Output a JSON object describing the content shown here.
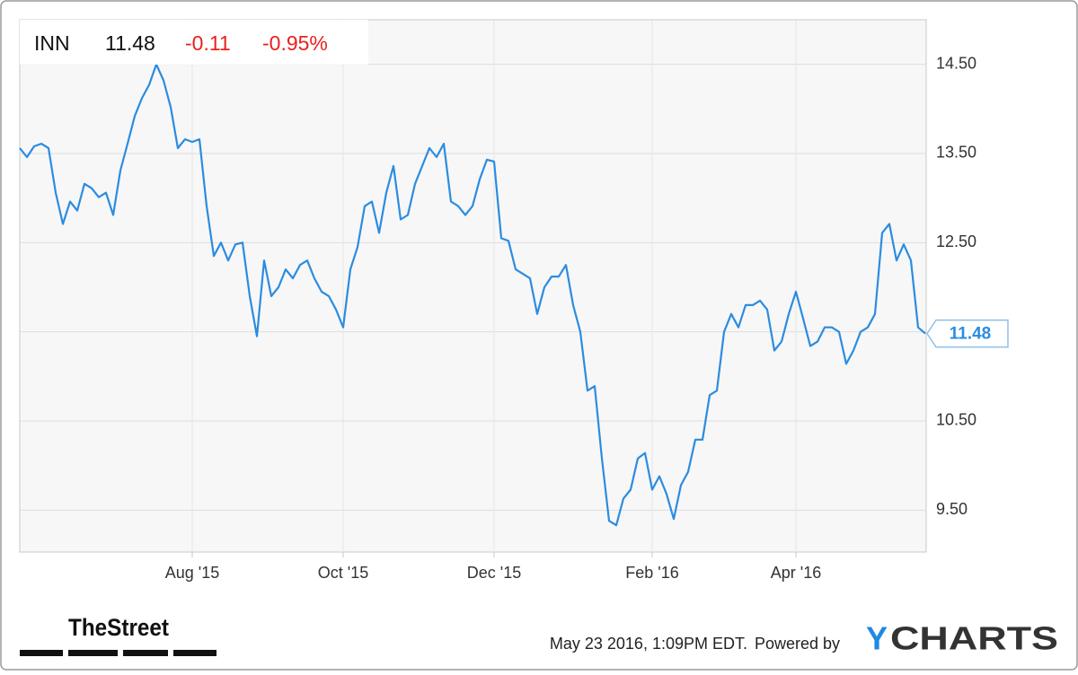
{
  "chart_data": {
    "type": "line",
    "title": "INN",
    "price": "11.48",
    "change": "-0.11",
    "change_pct": "-0.95%",
    "categories": [
      null,
      null,
      null,
      null,
      null,
      null,
      null,
      null,
      null,
      null,
      null,
      null,
      null,
      null,
      null,
      null,
      null,
      null,
      null,
      null,
      null,
      null,
      null,
      null,
      "Aug '15",
      null,
      null,
      null,
      null,
      null,
      null,
      null,
      null,
      null,
      null,
      null,
      null,
      null,
      null,
      null,
      null,
      null,
      null,
      null,
      null,
      "Oct '15",
      null,
      null,
      null,
      null,
      null,
      null,
      null,
      null,
      null,
      null,
      null,
      null,
      null,
      null,
      null,
      null,
      null,
      null,
      null,
      null,
      "Dec '15",
      null,
      null,
      null,
      null,
      null,
      null,
      null,
      null,
      null,
      null,
      null,
      null,
      null,
      null,
      null,
      null,
      null,
      null,
      null,
      null,
      null,
      "Feb '16",
      null,
      null,
      null,
      null,
      null,
      null,
      null,
      null,
      null,
      null,
      null,
      null,
      null,
      null,
      null,
      null,
      null,
      null,
      null,
      "Apr '16",
      null,
      null,
      null,
      null,
      null,
      null,
      null,
      null,
      null,
      null,
      null,
      null,
      null,
      null,
      null,
      null,
      null,
      null
    ],
    "values": [
      13.56,
      13.46,
      13.58,
      13.61,
      13.56,
      13.06,
      12.71,
      12.96,
      12.86,
      13.16,
      13.11,
      13.01,
      13.06,
      12.81,
      13.31,
      13.61,
      13.92,
      14.12,
      14.27,
      14.5,
      14.32,
      14.02,
      13.56,
      13.66,
      13.63,
      13.66,
      12.91,
      12.35,
      12.5,
      12.3,
      12.48,
      12.5,
      11.9,
      11.45,
      12.3,
      11.9,
      12.0,
      12.2,
      12.1,
      12.25,
      12.3,
      12.1,
      11.95,
      11.9,
      11.75,
      11.55,
      12.2,
      12.45,
      12.91,
      12.96,
      12.61,
      13.06,
      13.36,
      12.76,
      12.81,
      13.16,
      13.36,
      13.56,
      13.46,
      13.61,
      12.96,
      12.91,
      12.81,
      12.91,
      13.21,
      13.43,
      13.41,
      12.55,
      12.52,
      12.2,
      12.15,
      12.1,
      11.7,
      12.0,
      12.12,
      12.12,
      12.25,
      11.8,
      11.5,
      10.84,
      10.89,
      10.08,
      9.38,
      9.33,
      9.63,
      9.73,
      10.08,
      10.14,
      9.73,
      9.88,
      9.68,
      9.4,
      9.78,
      9.93,
      10.29,
      10.29,
      10.79,
      10.84,
      11.5,
      11.7,
      11.55,
      11.8,
      11.8,
      11.85,
      11.75,
      11.29,
      11.39,
      11.7,
      11.95,
      11.65,
      11.34,
      11.39,
      11.55,
      11.55,
      11.5,
      11.14,
      11.29,
      11.5,
      11.55,
      11.7,
      12.61,
      12.71,
      12.3,
      12.48,
      12.3,
      11.55,
      11.48
    ],
    "color": "#2b8ce0",
    "ylim": [
      9.03,
      15.0
    ],
    "yticks": [
      {
        "value": 9.5,
        "label": "9.50"
      },
      {
        "value": 10.5,
        "label": "10.50"
      },
      {
        "value": 11.5,
        "label": "11.50"
      },
      {
        "value": 12.5,
        "label": "12.50"
      },
      {
        "value": 13.5,
        "label": "13.50"
      },
      {
        "value": 14.5,
        "label": "14.50"
      }
    ],
    "grid": true
  },
  "footer": {
    "brand": "TheStreet",
    "timestamp": "May 23 2016, 1:09PM EDT.",
    "powered_by": "Powered by",
    "logo_y": "Y",
    "logo_rest": "CHARTS"
  }
}
